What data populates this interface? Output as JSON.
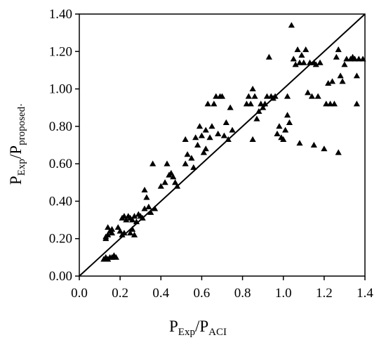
{
  "chart_data": {
    "type": "scatter",
    "xlabel": {
      "main": "P",
      "sub1": "Exp",
      "sep": "/P",
      "sub2": "ACI"
    },
    "ylabel": {
      "main": "P",
      "sub1": "Exp",
      "sep": "/P",
      "sub2": "proposed·"
    },
    "xlim": [
      0.0,
      1.4
    ],
    "ylim": [
      0.0,
      1.4
    ],
    "x_ticks": [
      "0.0",
      "0.2",
      "0.4",
      "0.6",
      "0.8",
      "1.0",
      "1.2",
      "1.4"
    ],
    "y_ticks": [
      "0.00",
      "0.20",
      "0.40",
      "0.60",
      "0.80",
      "1.00",
      "1.20",
      "1.40"
    ],
    "reference_line": [
      [
        0.0,
        0.0
      ],
      [
        1.4,
        1.4
      ]
    ],
    "marker": "triangle",
    "color": "#000000",
    "grid": false,
    "points": [
      [
        0.12,
        0.09
      ],
      [
        0.13,
        0.1
      ],
      [
        0.14,
        0.09
      ],
      [
        0.15,
        0.1
      ],
      [
        0.16,
        0.1
      ],
      [
        0.17,
        0.11
      ],
      [
        0.18,
        0.1
      ],
      [
        0.13,
        0.2
      ],
      [
        0.14,
        0.22
      ],
      [
        0.15,
        0.24
      ],
      [
        0.16,
        0.25
      ],
      [
        0.14,
        0.26
      ],
      [
        0.13,
        0.21
      ],
      [
        0.16,
        0.23
      ],
      [
        0.19,
        0.26
      ],
      [
        0.2,
        0.24
      ],
      [
        0.21,
        0.22
      ],
      [
        0.22,
        0.23
      ],
      [
        0.21,
        0.31
      ],
      [
        0.22,
        0.32
      ],
      [
        0.23,
        0.3
      ],
      [
        0.24,
        0.32
      ],
      [
        0.25,
        0.31
      ],
      [
        0.25,
        0.23
      ],
      [
        0.26,
        0.25
      ],
      [
        0.27,
        0.22
      ],
      [
        0.26,
        0.3
      ],
      [
        0.27,
        0.32
      ],
      [
        0.28,
        0.29
      ],
      [
        0.29,
        0.33
      ],
      [
        0.3,
        0.32
      ],
      [
        0.31,
        0.31
      ],
      [
        0.32,
        0.36
      ],
      [
        0.33,
        0.42
      ],
      [
        0.34,
        0.37
      ],
      [
        0.35,
        0.34
      ],
      [
        0.36,
        0.6
      ],
      [
        0.37,
        0.36
      ],
      [
        0.32,
        0.46
      ],
      [
        0.4,
        0.48
      ],
      [
        0.42,
        0.5
      ],
      [
        0.43,
        0.6
      ],
      [
        0.44,
        0.54
      ],
      [
        0.45,
        0.55
      ],
      [
        0.46,
        0.53
      ],
      [
        0.47,
        0.5
      ],
      [
        0.48,
        0.48
      ],
      [
        0.52,
        0.73
      ],
      [
        0.53,
        0.65
      ],
      [
        0.52,
        0.6
      ],
      [
        0.55,
        0.63
      ],
      [
        0.56,
        0.58
      ],
      [
        0.57,
        0.74
      ],
      [
        0.58,
        0.7
      ],
      [
        0.59,
        0.8
      ],
      [
        0.6,
        0.75
      ],
      [
        0.61,
        0.66
      ],
      [
        0.62,
        0.68
      ],
      [
        0.62,
        0.78
      ],
      [
        0.63,
        0.92
      ],
      [
        0.64,
        0.74
      ],
      [
        0.65,
        0.8
      ],
      [
        0.66,
        0.92
      ],
      [
        0.67,
        0.96
      ],
      [
        0.68,
        0.76
      ],
      [
        0.69,
        0.96
      ],
      [
        0.7,
        0.96
      ],
      [
        0.71,
        0.75
      ],
      [
        0.72,
        0.82
      ],
      [
        0.73,
        0.73
      ],
      [
        0.74,
        0.9
      ],
      [
        0.75,
        0.78
      ],
      [
        0.82,
        0.92
      ],
      [
        0.83,
        0.96
      ],
      [
        0.84,
        0.92
      ],
      [
        0.85,
        1.0
      ],
      [
        0.85,
        0.73
      ],
      [
        0.86,
        0.96
      ],
      [
        0.87,
        0.84
      ],
      [
        0.88,
        0.88
      ],
      [
        0.89,
        0.92
      ],
      [
        0.9,
        0.9
      ],
      [
        0.91,
        0.92
      ],
      [
        0.92,
        0.96
      ],
      [
        0.93,
        1.17
      ],
      [
        0.94,
        0.96
      ],
      [
        0.95,
        0.95
      ],
      [
        0.96,
        0.96
      ],
      [
        0.97,
        0.76
      ],
      [
        0.98,
        0.8
      ],
      [
        0.99,
        0.74
      ],
      [
        1.0,
        0.73
      ],
      [
        1.01,
        0.78
      ],
      [
        1.02,
        0.86
      ],
      [
        1.02,
        0.96
      ],
      [
        1.03,
        0.82
      ],
      [
        1.04,
        1.34
      ],
      [
        1.05,
        1.16
      ],
      [
        1.06,
        1.13
      ],
      [
        1.07,
        1.21
      ],
      [
        1.08,
        1.14
      ],
      [
        1.09,
        1.18
      ],
      [
        1.1,
        1.14
      ],
      [
        1.11,
        1.21
      ],
      [
        1.12,
        0.98
      ],
      [
        1.13,
        1.14
      ],
      [
        1.14,
        0.96
      ],
      [
        1.15,
        1.14
      ],
      [
        1.16,
        1.13
      ],
      [
        1.17,
        0.96
      ],
      [
        1.18,
        1.14
      ],
      [
        1.08,
        0.71
      ],
      [
        1.15,
        0.7
      ],
      [
        1.2,
        0.68
      ],
      [
        1.21,
        0.92
      ],
      [
        1.22,
        1.03
      ],
      [
        1.23,
        0.92
      ],
      [
        1.24,
        1.04
      ],
      [
        1.25,
        0.92
      ],
      [
        1.26,
        1.17
      ],
      [
        1.27,
        1.21
      ],
      [
        1.28,
        1.07
      ],
      [
        1.29,
        1.04
      ],
      [
        1.3,
        1.13
      ],
      [
        1.31,
        1.16
      ],
      [
        1.27,
        0.66
      ],
      [
        1.33,
        1.16
      ],
      [
        1.34,
        1.17
      ],
      [
        1.35,
        1.16
      ],
      [
        1.36,
        1.07
      ],
      [
        1.36,
        0.92
      ],
      [
        1.37,
        1.16
      ],
      [
        1.39,
        1.16
      ]
    ]
  }
}
